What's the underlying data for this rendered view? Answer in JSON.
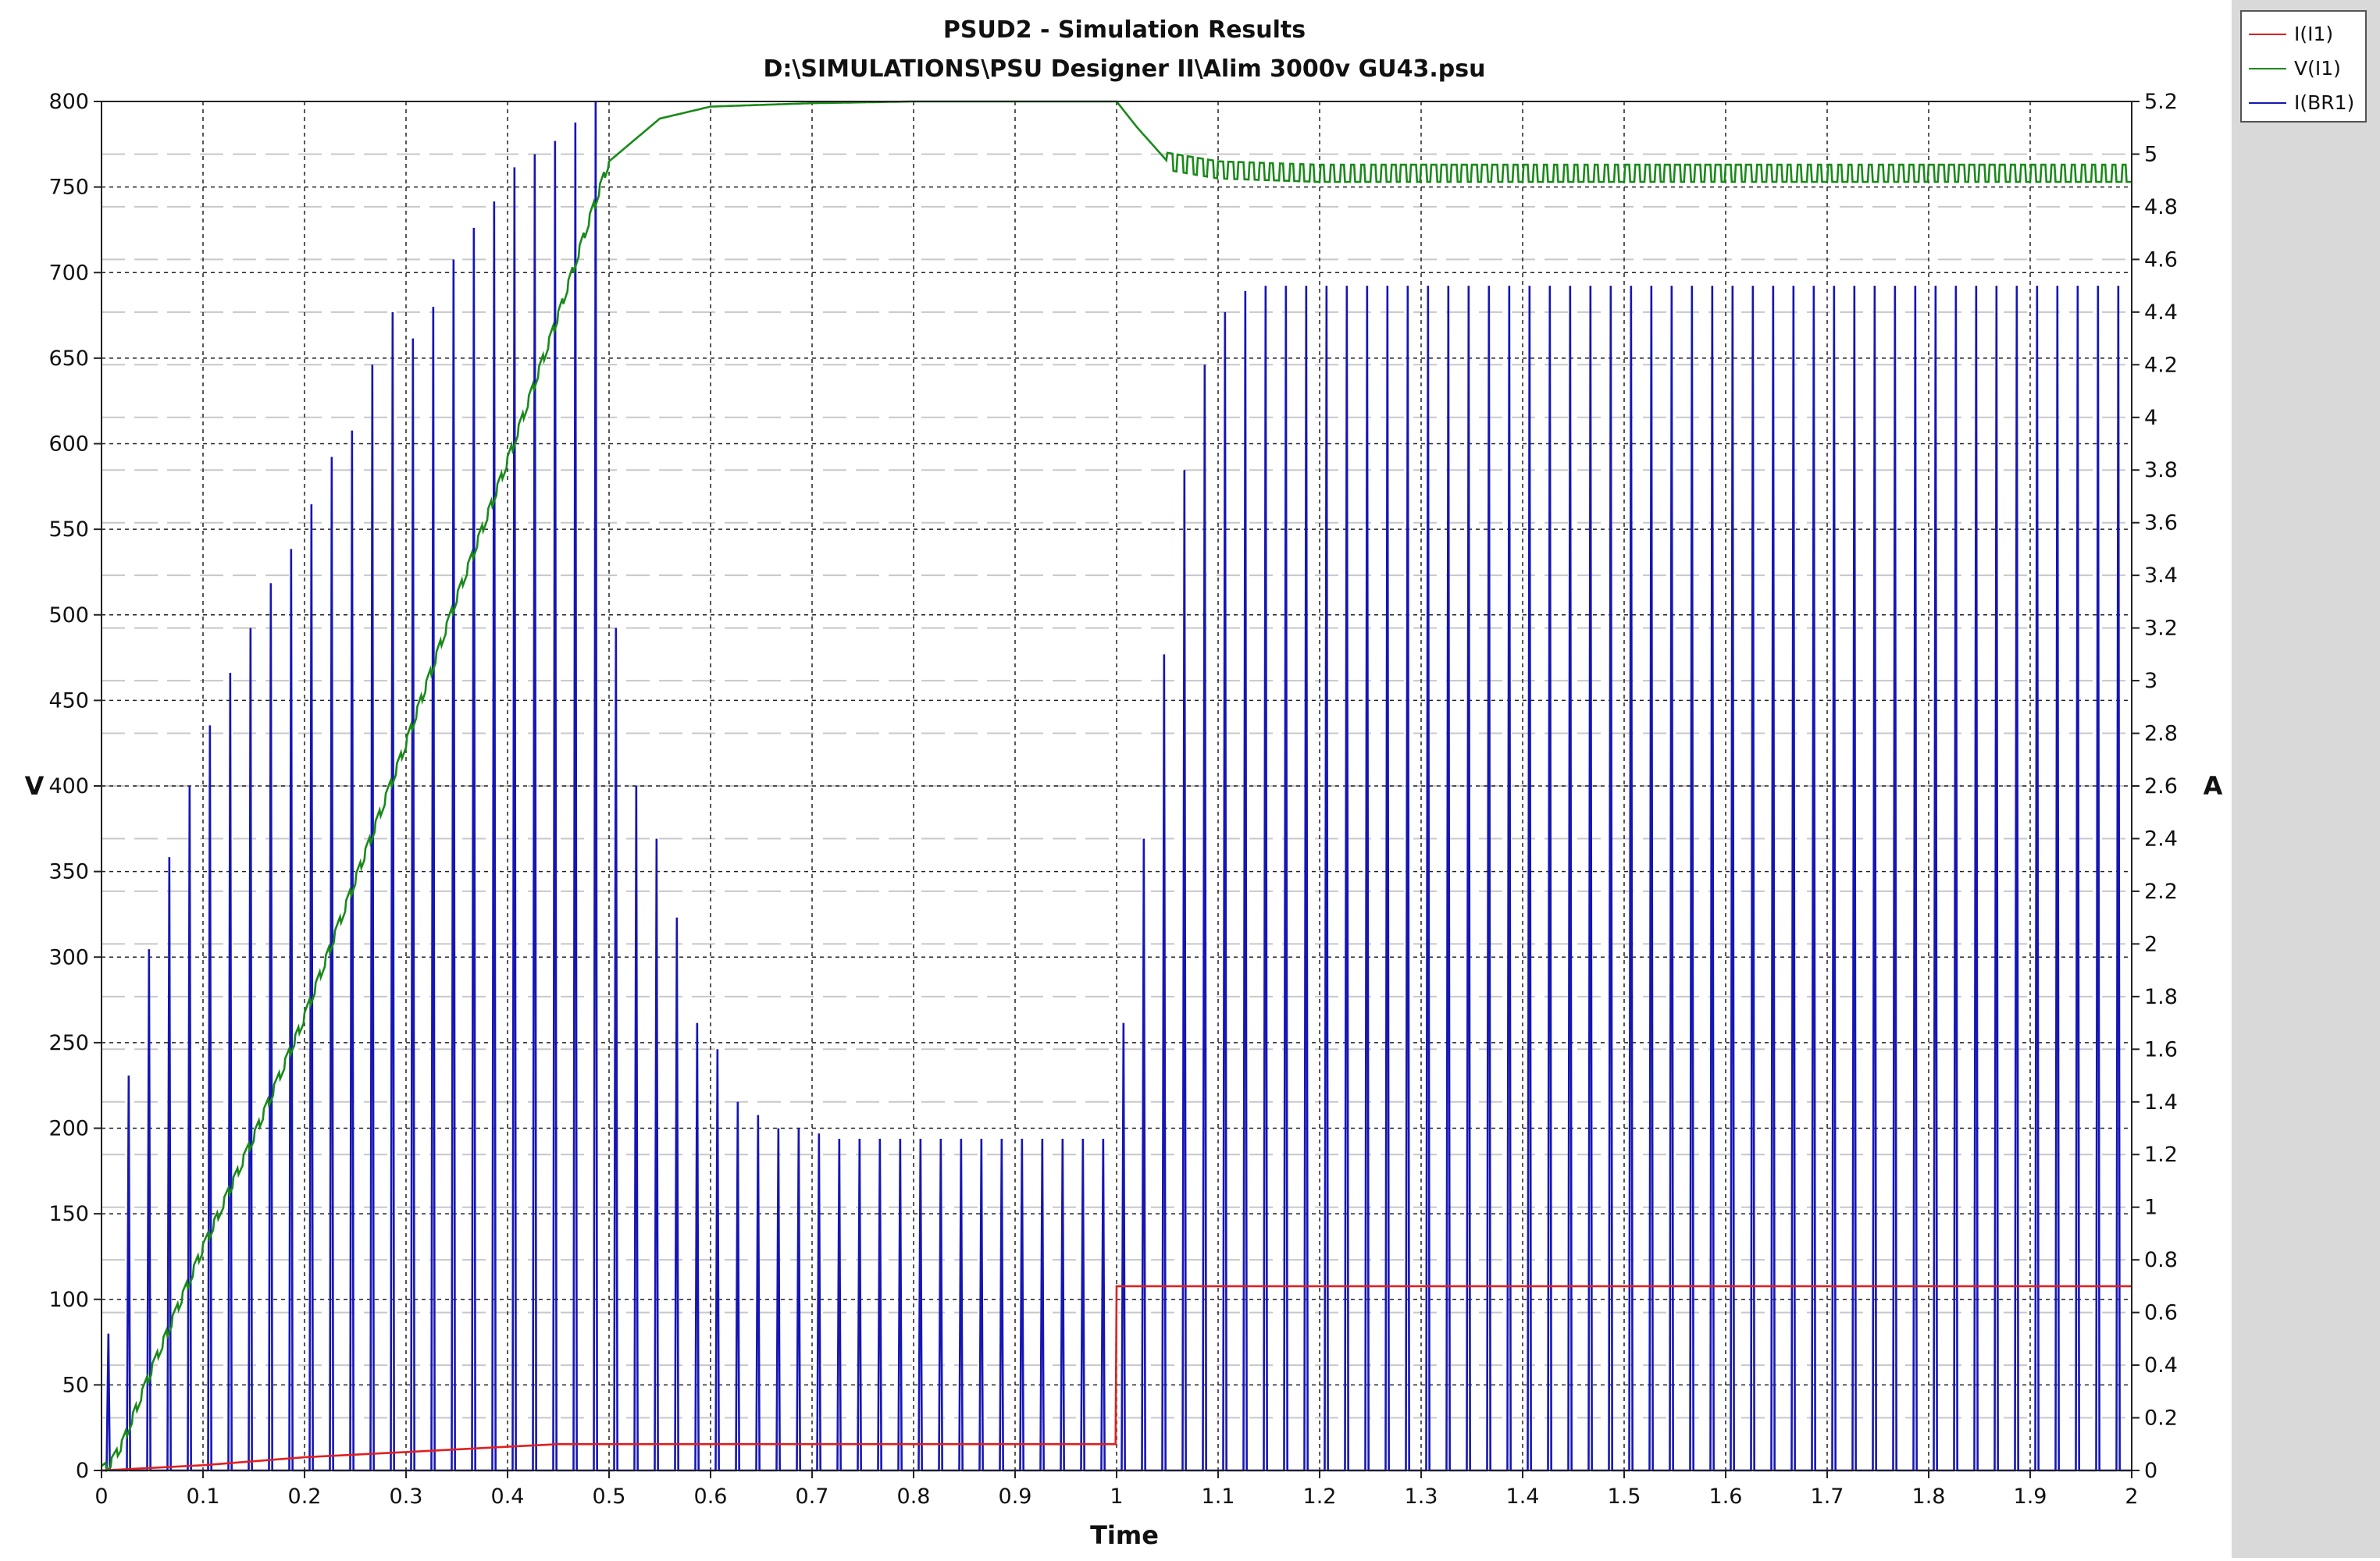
{
  "chart_data": {
    "type": "line",
    "title": "PSUD2 - Simulation Results",
    "subtitle": "D:\\SIMULATIONS\\PSU Designer II\\Alim 3000v GU43.psu",
    "xlabel": "Time",
    "ylabel_left": "V",
    "ylabel_right": "A",
    "xlim": [
      0,
      2
    ],
    "ylim_left": [
      0,
      800
    ],
    "ylim_right": [
      0,
      5.2
    ],
    "x_ticks": [
      "0",
      "0.1",
      "0.2",
      "0.3",
      "0.4",
      "0.5",
      "0.6",
      "0.7",
      "0.8",
      "0.9",
      "1",
      "1.1",
      "1.2",
      "1.3",
      "1.4",
      "1.5",
      "1.6",
      "1.7",
      "1.8",
      "1.9",
      "2"
    ],
    "y_left_ticks": [
      "0",
      "50",
      "100",
      "150",
      "200",
      "250",
      "300",
      "350",
      "400",
      "450",
      "500",
      "550",
      "600",
      "650",
      "700",
      "750",
      "800"
    ],
    "y_right_ticks": [
      "0",
      "0.2",
      "0.4",
      "0.6",
      "0.8",
      "1",
      "1.2",
      "1.4",
      "1.6",
      "1.8",
      "2",
      "2.2",
      "2.4",
      "2.6",
      "2.8",
      "3",
      "3.2",
      "3.4",
      "3.6",
      "3.8",
      "4",
      "4.2",
      "4.4",
      "4.6",
      "4.8",
      "5",
      "5.2"
    ],
    "grid": true,
    "legend_position": "top-right",
    "series": [
      {
        "name": "I(I1)",
        "color": "#e02020",
        "axis": "right",
        "x": [
          0,
          0.1,
          0.2,
          0.3,
          0.4,
          0.45,
          0.5,
          0.999,
          1.0,
          2.0
        ],
        "y": [
          0,
          0.02,
          0.05,
          0.07,
          0.09,
          0.1,
          0.1,
          0.1,
          0.7,
          0.7
        ]
      },
      {
        "name": "V(I1)",
        "color": "#1a8a1a",
        "axis": "left",
        "x": [
          0,
          0.01,
          0.02,
          0.05,
          0.1,
          0.15,
          0.2,
          0.25,
          0.3,
          0.35,
          0.4,
          0.45,
          0.48,
          0.5,
          0.55,
          0.6,
          0.7,
          0.8,
          0.9,
          1.0,
          1.02,
          1.05,
          1.1,
          1.2,
          1.5,
          1.8,
          2.0
        ],
        "y": [
          0,
          5,
          15,
          60,
          130,
          195,
          265,
          345,
          425,
          510,
          590,
          675,
          730,
          765,
          790,
          797,
          799,
          800,
          800,
          800,
          785,
          765,
          760,
          758,
          758,
          758,
          758
        ],
        "ripple_after": 1.05,
        "ripple_amplitude": 5
      },
      {
        "name": "I(BR1)",
        "color": "#1616b4",
        "axis": "right",
        "peaks": [
          {
            "t": 0.005,
            "a": 0.52
          },
          {
            "t": 0.025,
            "a": 1.5
          },
          {
            "t": 0.045,
            "a": 1.98
          },
          {
            "t": 0.065,
            "a": 2.33
          },
          {
            "t": 0.085,
            "a": 2.6
          },
          {
            "t": 0.105,
            "a": 2.83
          },
          {
            "t": 0.125,
            "a": 3.03
          },
          {
            "t": 0.145,
            "a": 3.2
          },
          {
            "t": 0.165,
            "a": 3.37
          },
          {
            "t": 0.185,
            "a": 3.5
          },
          {
            "t": 0.205,
            "a": 3.67
          },
          {
            "t": 0.225,
            "a": 3.85
          },
          {
            "t": 0.245,
            "a": 3.95
          },
          {
            "t": 0.265,
            "a": 4.2
          },
          {
            "t": 0.285,
            "a": 4.4
          },
          {
            "t": 0.305,
            "a": 4.3
          },
          {
            "t": 0.325,
            "a": 4.42
          },
          {
            "t": 0.345,
            "a": 4.6
          },
          {
            "t": 0.365,
            "a": 4.72
          },
          {
            "t": 0.385,
            "a": 4.82
          },
          {
            "t": 0.405,
            "a": 4.95
          },
          {
            "t": 0.425,
            "a": 5.0
          },
          {
            "t": 0.445,
            "a": 5.05
          },
          {
            "t": 0.465,
            "a": 5.12
          },
          {
            "t": 0.485,
            "a": 5.2
          },
          {
            "t": 0.505,
            "a": 3.2
          },
          {
            "t": 0.525,
            "a": 2.6
          },
          {
            "t": 0.545,
            "a": 2.4
          },
          {
            "t": 0.565,
            "a": 2.1
          },
          {
            "t": 0.585,
            "a": 1.7
          },
          {
            "t": 0.605,
            "a": 1.6
          },
          {
            "t": 0.625,
            "a": 1.4
          },
          {
            "t": 0.645,
            "a": 1.35
          },
          {
            "t": 0.665,
            "a": 1.3
          },
          {
            "t": 0.685,
            "a": 1.3
          },
          {
            "t": 0.705,
            "a": 1.28
          },
          {
            "t": 0.725,
            "a": 1.26
          },
          {
            "t": 0.745,
            "a": 1.26
          },
          {
            "t": 0.765,
            "a": 1.26
          },
          {
            "t": 0.785,
            "a": 1.26
          },
          {
            "t": 0.805,
            "a": 1.26
          },
          {
            "t": 0.825,
            "a": 1.26
          },
          {
            "t": 0.845,
            "a": 1.26
          },
          {
            "t": 0.865,
            "a": 1.26
          },
          {
            "t": 0.885,
            "a": 1.26
          },
          {
            "t": 0.905,
            "a": 1.26
          },
          {
            "t": 0.925,
            "a": 1.26
          },
          {
            "t": 0.945,
            "a": 1.26
          },
          {
            "t": 0.965,
            "a": 1.26
          },
          {
            "t": 0.985,
            "a": 1.26
          },
          {
            "t": 1.005,
            "a": 1.7
          },
          {
            "t": 1.025,
            "a": 2.4
          },
          {
            "t": 1.045,
            "a": 3.1
          },
          {
            "t": 1.065,
            "a": 3.8
          },
          {
            "t": 1.085,
            "a": 4.2
          },
          {
            "t": 1.105,
            "a": 4.4
          },
          {
            "t": 1.125,
            "a": 4.48
          },
          {
            "t": 1.145,
            "a": 4.5
          },
          {
            "t": 1.165,
            "a": 4.5
          }
        ],
        "steady_peak": 4.5,
        "steady_period": 0.02
      }
    ]
  }
}
